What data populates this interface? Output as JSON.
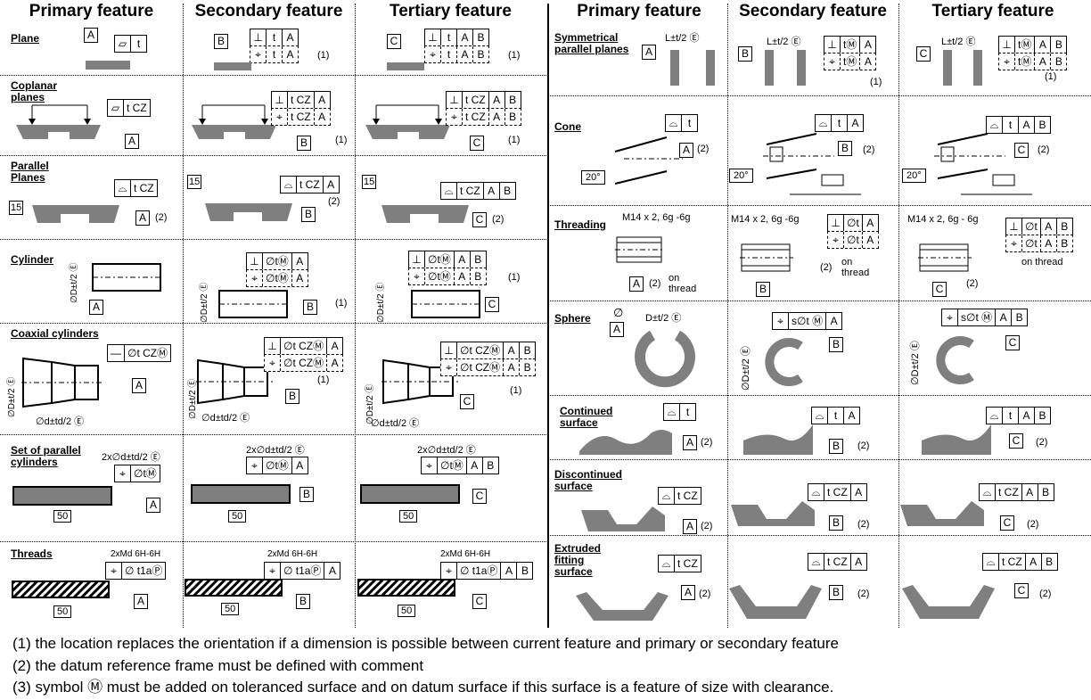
{
  "headers": {
    "left": [
      "Primary feature",
      "Secondary feature",
      "Tertiary feature"
    ],
    "right": [
      "Primary feature",
      "Secondary feature",
      "Tertiary feature"
    ]
  },
  "rows_left": [
    {
      "label": "Plane",
      "primary": [
        "▱",
        "t"
      ],
      "secondary": [
        [
          "⊥",
          "t",
          "A"
        ],
        [
          "⌖",
          "t",
          "A"
        ]
      ],
      "tertiary": [
        [
          "⊥",
          "t",
          "A",
          "B"
        ],
        [
          "⌖",
          "t",
          "A",
          "B"
        ]
      ],
      "datum_p": "A",
      "datum_s": "B",
      "datum_t": "C",
      "note": "(1)"
    },
    {
      "label": "Coplanar planes",
      "primary": [
        "▱",
        "t CZ"
      ],
      "secondary": [
        [
          "⊥",
          "t CZ",
          "A"
        ],
        [
          "⌖",
          "t CZ",
          "A"
        ]
      ],
      "tertiary": [
        [
          "⊥",
          "t CZ",
          "A",
          "B"
        ],
        [
          "⌖",
          "t CZ",
          "A",
          "B"
        ]
      ],
      "datum_p": "A",
      "datum_s": "B",
      "datum_t": "C",
      "note": "(1)"
    },
    {
      "label": "Parallel Planes",
      "primary": [
        "⌓",
        "t CZ"
      ],
      "secondary": [
        [
          "⌓",
          "t CZ",
          "A"
        ]
      ],
      "tertiary": [
        [
          "⌓",
          "t CZ",
          "A",
          "B"
        ]
      ],
      "datum_p": "A",
      "datum_s": "B",
      "datum_t": "C",
      "note": "(2)",
      "dim": "15"
    },
    {
      "label": "Cylinder",
      "secondary": [
        [
          "⊥",
          "∅tⓂ",
          "A"
        ],
        [
          "⌖",
          "∅tⓂ",
          "A"
        ]
      ],
      "tertiary": [
        [
          "⊥",
          "∅tⓂ",
          "A",
          "B"
        ],
        [
          "⌖",
          "∅tⓂ",
          "A",
          "B"
        ]
      ],
      "datum_p": "A",
      "datum_s": "B",
      "datum_t": "C",
      "note": "(1)",
      "dim": "∅D±t/2 Ⓔ"
    },
    {
      "label": "Coaxial cylinders",
      "primary": [
        "—",
        "∅t CZⓂ"
      ],
      "secondary": [
        [
          "⊥",
          "∅t CZⓂ",
          "A"
        ],
        [
          "⌖",
          "∅t CZⓂ",
          "A"
        ]
      ],
      "tertiary": [
        [
          "⊥",
          "∅t CZⓂ",
          "A",
          "B"
        ],
        [
          "⌖",
          "∅t CZⓂ",
          "A",
          "B"
        ]
      ],
      "datum_p": "A",
      "datum_s": "B",
      "datum_t": "C",
      "note": "(1)",
      "dim": "∅D±t/2 Ⓔ",
      "dim2": "∅d±td/2 Ⓔ"
    },
    {
      "label": "Set of parallel cylinders",
      "primary": [
        "⌖",
        "∅tⓂ"
      ],
      "secondary": [
        [
          "⌖",
          "∅tⓂ",
          "A"
        ]
      ],
      "tertiary": [
        [
          "⌖",
          "∅tⓂ",
          "A",
          "B"
        ]
      ],
      "datum_p": "A",
      "datum_s": "B",
      "datum_t": "C",
      "dim": "2x∅d±td/2 Ⓔ",
      "dim2": "50"
    },
    {
      "label": "Threads",
      "primary": [
        "⌖",
        "∅ t1aⓅ"
      ],
      "secondary": [
        [
          "⌖",
          "∅ t1aⓅ",
          "A"
        ]
      ],
      "tertiary": [
        [
          "⌖",
          "∅ t1aⓅ",
          "A",
          "B"
        ]
      ],
      "datum_p": "A",
      "datum_s": "B",
      "datum_t": "C",
      "dim": "2xMd 6H-6H",
      "dim2": "50"
    }
  ],
  "rows_right": [
    {
      "label": "Symmetrical parallel planes",
      "dim": "L±t/2 Ⓔ",
      "secondary": [
        [
          "⊥",
          "tⓂ",
          "A"
        ],
        [
          "⌖",
          "tⓂ",
          "A"
        ]
      ],
      "tertiary": [
        [
          "⊥",
          "tⓂ",
          "A",
          "B"
        ],
        [
          "⌖",
          "tⓂ",
          "A",
          "B"
        ]
      ],
      "datum_p": "A",
      "datum_s": "B",
      "datum_t": "C",
      "note": "(1)"
    },
    {
      "label": "Cone",
      "primary": [
        "⌓",
        "t"
      ],
      "secondary": [
        [
          "⌓",
          "t",
          "A"
        ]
      ],
      "tertiary": [
        [
          "⌓",
          "t",
          "A",
          "B"
        ]
      ],
      "datum_p": "A",
      "datum_s": "B",
      "datum_t": "C",
      "note": "(2)",
      "dim": "20°"
    },
    {
      "label": "Threading",
      "dim": "M14 x 2, 6g -6g",
      "dim_t": "M14 x 2,  6g - 6g",
      "secondary": [
        [
          "⊥",
          "∅t",
          "A"
        ],
        [
          "⌖",
          "∅t",
          "A"
        ]
      ],
      "tertiary": [
        [
          "⊥",
          "∅t",
          "A",
          "B"
        ],
        [
          "⌖",
          "∅t",
          "A",
          "B"
        ]
      ],
      "datum_p": "A",
      "datum_s": "B",
      "datum_t": "C",
      "note": "(2)",
      "note2": "on thread"
    },
    {
      "label": "Sphere",
      "dim": "D±t/2 Ⓔ",
      "dim2": "∅",
      "dimv": "∅D±t/2 Ⓔ",
      "secondary": [
        [
          "⌖",
          "s∅t Ⓜ",
          "A"
        ]
      ],
      "tertiary": [
        [
          "⌖",
          "s∅t Ⓜ",
          "A",
          "B"
        ]
      ],
      "datum_p": "A",
      "datum_s": "B",
      "datum_t": "C"
    },
    {
      "label": "Continued surface",
      "primary": [
        "⌓",
        "t"
      ],
      "secondary": [
        [
          "⌓",
          "t",
          "A"
        ]
      ],
      "tertiary": [
        [
          "⌓",
          "t",
          "A",
          "B"
        ]
      ],
      "datum_p": "A",
      "datum_s": "B",
      "datum_t": "C",
      "note": "(2)"
    },
    {
      "label": "Discontinued surface",
      "primary": [
        "⌓",
        "t CZ"
      ],
      "secondary": [
        [
          "⌓",
          "t CZ",
          "A"
        ]
      ],
      "tertiary": [
        [
          "⌓",
          "t CZ",
          "A",
          "B"
        ]
      ],
      "datum_p": "A",
      "datum_s": "B",
      "datum_t": "C",
      "note": "(2)"
    },
    {
      "label": "Extruded fitting surface",
      "primary": [
        "⌓",
        "t CZ"
      ],
      "secondary": [
        [
          "⌓",
          "t CZ",
          "A"
        ]
      ],
      "tertiary": [
        [
          "⌓",
          "t CZ",
          "A",
          "B"
        ]
      ],
      "datum_p": "A",
      "datum_s": "B",
      "datum_t": "C",
      "note": "(2)"
    }
  ],
  "footnotes": [
    "(1) the location replaces  the orientation if a dimension is possible between current feature and primary  or secondary feature",
    "(2) the datum reference frame must be defined with comment",
    "(3) symbol Ⓜ must be added on toleranced surface and on datum surface if this surface is a feature of size with clearance."
  ]
}
